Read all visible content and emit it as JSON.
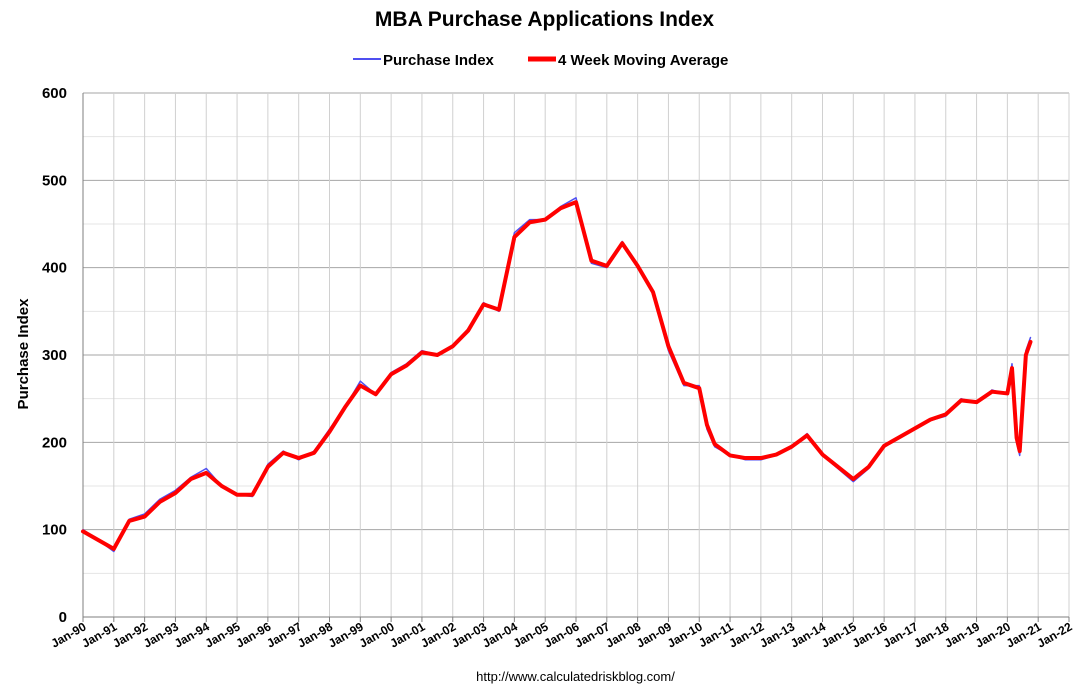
{
  "chart_data": {
    "type": "line",
    "title": "MBA Purchase Applications Index",
    "ylabel": "Purchase Index",
    "xlabel": "",
    "ylim": [
      0,
      600
    ],
    "y_ticks": [
      0,
      100,
      200,
      300,
      400,
      500,
      600
    ],
    "x_range": [
      1990,
      2022
    ],
    "x_ticks": [
      "Jan-90",
      "Jan-91",
      "Jan-92",
      "Jan-93",
      "Jan-94",
      "Jan-95",
      "Jan-96",
      "Jan-97",
      "Jan-98",
      "Jan-99",
      "Jan-00",
      "Jan-01",
      "Jan-02",
      "Jan-03",
      "Jan-04",
      "Jan-05",
      "Jan-06",
      "Jan-07",
      "Jan-08",
      "Jan-09",
      "Jan-10",
      "Jan-11",
      "Jan-12",
      "Jan-13",
      "Jan-14",
      "Jan-15",
      "Jan-16",
      "Jan-17",
      "Jan-18",
      "Jan-19",
      "Jan-20",
      "Jan-21",
      "Jan-22"
    ],
    "grid": "major horizontal and vertical",
    "legend_position": "top-center",
    "colors": {
      "purchase_index": "#4f4ff0",
      "moving_average": "#ff0000"
    },
    "series": [
      {
        "name": "Purchase Index",
        "x": [
          1990.0,
          1990.5,
          1991.0,
          1991.5,
          1992.0,
          1992.5,
          1993.0,
          1993.5,
          1994.0,
          1994.5,
          1995.0,
          1995.5,
          1996.0,
          1996.5,
          1997.0,
          1997.5,
          1998.0,
          1998.5,
          1999.0,
          1999.5,
          2000.0,
          2000.5,
          2001.0,
          2001.5,
          2002.0,
          2002.5,
          2003.0,
          2003.5,
          2004.0,
          2004.5,
          2005.0,
          2005.5,
          2006.0,
          2006.5,
          2007.0,
          2007.5,
          2008.0,
          2008.5,
          2009.0,
          2009.5,
          2010.0,
          2010.25,
          2010.5,
          2011.0,
          2011.5,
          2012.0,
          2012.5,
          2013.0,
          2013.5,
          2014.0,
          2014.5,
          2015.0,
          2015.5,
          2016.0,
          2016.5,
          2017.0,
          2017.5,
          2018.0,
          2018.5,
          2019.0,
          2019.5,
          2020.0,
          2020.15,
          2020.3,
          2020.4,
          2020.5,
          2020.6,
          2020.75
        ],
        "y": [
          100,
          88,
          75,
          112,
          118,
          135,
          145,
          160,
          170,
          150,
          140,
          138,
          175,
          190,
          180,
          190,
          215,
          240,
          270,
          255,
          280,
          290,
          305,
          300,
          310,
          330,
          360,
          350,
          440,
          455,
          455,
          470,
          480,
          405,
          400,
          430,
          400,
          370,
          305,
          265,
          265,
          215,
          195,
          185,
          180,
          180,
          185,
          195,
          210,
          185,
          170,
          155,
          170,
          195,
          205,
          215,
          225,
          230,
          250,
          245,
          260,
          255,
          290,
          200,
          185,
          240,
          305,
          320
        ]
      },
      {
        "name": "4 Week Moving Average",
        "x": [
          1990.0,
          1990.5,
          1991.0,
          1991.5,
          1992.0,
          1992.5,
          1993.0,
          1993.5,
          1994.0,
          1994.5,
          1995.0,
          1995.5,
          1996.0,
          1996.5,
          1997.0,
          1997.5,
          1998.0,
          1998.5,
          1999.0,
          1999.5,
          2000.0,
          2000.5,
          2001.0,
          2001.5,
          2002.0,
          2002.5,
          2003.0,
          2003.5,
          2004.0,
          2004.5,
          2005.0,
          2005.5,
          2006.0,
          2006.5,
          2007.0,
          2007.5,
          2008.0,
          2008.5,
          2009.0,
          2009.5,
          2010.0,
          2010.25,
          2010.5,
          2011.0,
          2011.5,
          2012.0,
          2012.5,
          2013.0,
          2013.5,
          2014.0,
          2014.5,
          2015.0,
          2015.5,
          2016.0,
          2016.5,
          2017.0,
          2017.5,
          2018.0,
          2018.5,
          2019.0,
          2019.5,
          2020.0,
          2020.15,
          2020.3,
          2020.4,
          2020.5,
          2020.6,
          2020.75
        ],
        "y": [
          98,
          88,
          78,
          110,
          115,
          132,
          142,
          158,
          165,
          150,
          140,
          140,
          172,
          188,
          182,
          188,
          212,
          240,
          265,
          255,
          278,
          288,
          303,
          300,
          310,
          328,
          358,
          352,
          435,
          452,
          455,
          468,
          475,
          408,
          402,
          428,
          402,
          372,
          310,
          268,
          262,
          220,
          198,
          185,
          182,
          182,
          186,
          195,
          208,
          186,
          172,
          158,
          172,
          196,
          206,
          216,
          226,
          232,
          248,
          246,
          258,
          256,
          285,
          205,
          190,
          245,
          300,
          315
        ]
      }
    ],
    "source": "http://www.calculatedriskblog.com/"
  }
}
